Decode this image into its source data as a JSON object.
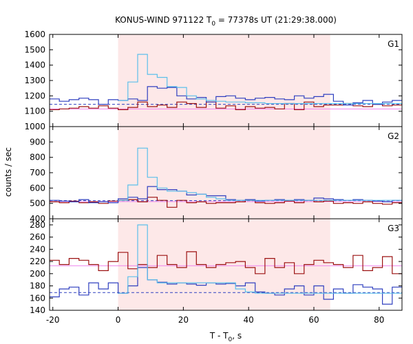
{
  "chart_data": {
    "type": "line",
    "title": "KONUS-WIND 971122 T",
    "title_sub": "0",
    "title_rest": " = 77378s UT (21:29:38.000)",
    "xlabel_main": "T - T",
    "xlabel_sub": "0",
    "xlabel_rest": ", s",
    "ylabel": "counts / sec",
    "xlim": [
      -21,
      87
    ],
    "xticks": [
      -20,
      0,
      20,
      40,
      60,
      80
    ],
    "shaded_interval": [
      0,
      65
    ],
    "colors": {
      "shade": "#fde8e8",
      "blue": "#2f3fbf",
      "red": "#9b1111",
      "cyan": "#5bbfea",
      "magenta": "#ee82ee"
    },
    "bin_starts": [
      -21,
      -18,
      -15,
      -12,
      -9,
      -6,
      -3,
      0,
      3,
      6,
      9,
      12,
      15,
      18,
      21,
      24,
      27,
      30,
      33,
      36,
      39,
      42,
      45,
      48,
      51,
      54,
      57,
      60,
      63,
      66,
      69,
      72,
      75,
      78,
      81,
      84
    ],
    "panels": [
      {
        "label": "G1",
        "ylim": [
          1000,
          1600
        ],
        "yticks": [
          1000,
          1100,
          1200,
          1300,
          1400,
          1500,
          1600
        ],
        "blue_counts": [
          1180,
          1165,
          1175,
          1185,
          1175,
          1145,
          1175,
          1170,
          1180,
          1170,
          1260,
          1250,
          1255,
          1200,
          1180,
          1190,
          1160,
          1195,
          1200,
          1185,
          1175,
          1185,
          1190,
          1180,
          1175,
          1200,
          1185,
          1195,
          1210,
          1165,
          1140,
          1155,
          1170,
          1145,
          1160,
          1170
        ],
        "red_counts": [
          1110,
          1115,
          1120,
          1130,
          1120,
          1135,
          1120,
          1110,
          1125,
          1160,
          1130,
          1140,
          1125,
          1160,
          1150,
          1125,
          1160,
          1120,
          1135,
          1110,
          1130,
          1120,
          1125,
          1115,
          1150,
          1110,
          1160,
          1130,
          1140,
          1140,
          1150,
          1135,
          1130,
          1145,
          1135,
          1140
        ],
        "light_curve": [
          null,
          null,
          null,
          null,
          null,
          null,
          null,
          1170,
          1290,
          1470,
          1340,
          1320,
          1260,
          1255,
          1200,
          1180,
          1170,
          1165,
          1160,
          1160,
          1155,
          1155,
          1150,
          1150,
          1150,
          1150,
          1150,
          1150,
          1150,
          1150,
          1150,
          1150,
          1150,
          1150,
          1150,
          1150
        ],
        "blue_background": 1145,
        "red_background": 1115
      },
      {
        "label": "G2",
        "ylim": [
          400,
          1000
        ],
        "yticks": [
          400,
          500,
          600,
          700,
          800,
          900
        ],
        "blue_counts": [
          520,
          515,
          510,
          525,
          505,
          510,
          505,
          530,
          540,
          530,
          610,
          590,
          590,
          580,
          555,
          560,
          550,
          550,
          525,
          520,
          525,
          515,
          520,
          525,
          520,
          525,
          520,
          535,
          530,
          525,
          520,
          525,
          520,
          515,
          510,
          520
        ],
        "red_counts": [
          510,
          505,
          515,
          505,
          510,
          500,
          515,
          520,
          525,
          510,
          540,
          520,
          475,
          520,
          505,
          510,
          500,
          505,
          505,
          510,
          520,
          505,
          500,
          505,
          515,
          505,
          520,
          510,
          515,
          500,
          505,
          500,
          510,
          500,
          495,
          505
        ],
        "light_curve": [
          null,
          null,
          null,
          null,
          null,
          null,
          null,
          520,
          620,
          860,
          670,
          600,
          580,
          580,
          570,
          560,
          540,
          530,
          520,
          520,
          520,
          520,
          520,
          520,
          520,
          520,
          520,
          520,
          520,
          520,
          520,
          520,
          520,
          520,
          520,
          520
        ],
        "blue_background": 518,
        "red_background": 512
      },
      {
        "label": "G3",
        "ylim": [
          140,
          290
        ],
        "yticks": [
          140,
          160,
          180,
          200,
          220,
          240,
          260,
          280
        ],
        "blue_counts": [
          162,
          175,
          178,
          165,
          185,
          175,
          185,
          168,
          180,
          210,
          190,
          186,
          183,
          185,
          183,
          181,
          185,
          183,
          184,
          180,
          185,
          170,
          168,
          165,
          175,
          180,
          165,
          180,
          158,
          175,
          168,
          182,
          178,
          175,
          150,
          178
        ],
        "red_counts": [
          222,
          215,
          225,
          222,
          215,
          205,
          220,
          235,
          208,
          215,
          210,
          230,
          215,
          210,
          236,
          215,
          210,
          215,
          218,
          220,
          210,
          200,
          225,
          210,
          218,
          200,
          215,
          222,
          218,
          215,
          210,
          230,
          205,
          210,
          228,
          200
        ],
        "light_curve": [
          null,
          null,
          null,
          null,
          null,
          null,
          null,
          168,
          195,
          280,
          190,
          185,
          185,
          185,
          185,
          185,
          185,
          185,
          185,
          175,
          170,
          168,
          168,
          168,
          168,
          168,
          168,
          168,
          168,
          168,
          168,
          168,
          168,
          168,
          168,
          168
        ],
        "blue_background": 169,
        "red_background": 213
      }
    ]
  }
}
